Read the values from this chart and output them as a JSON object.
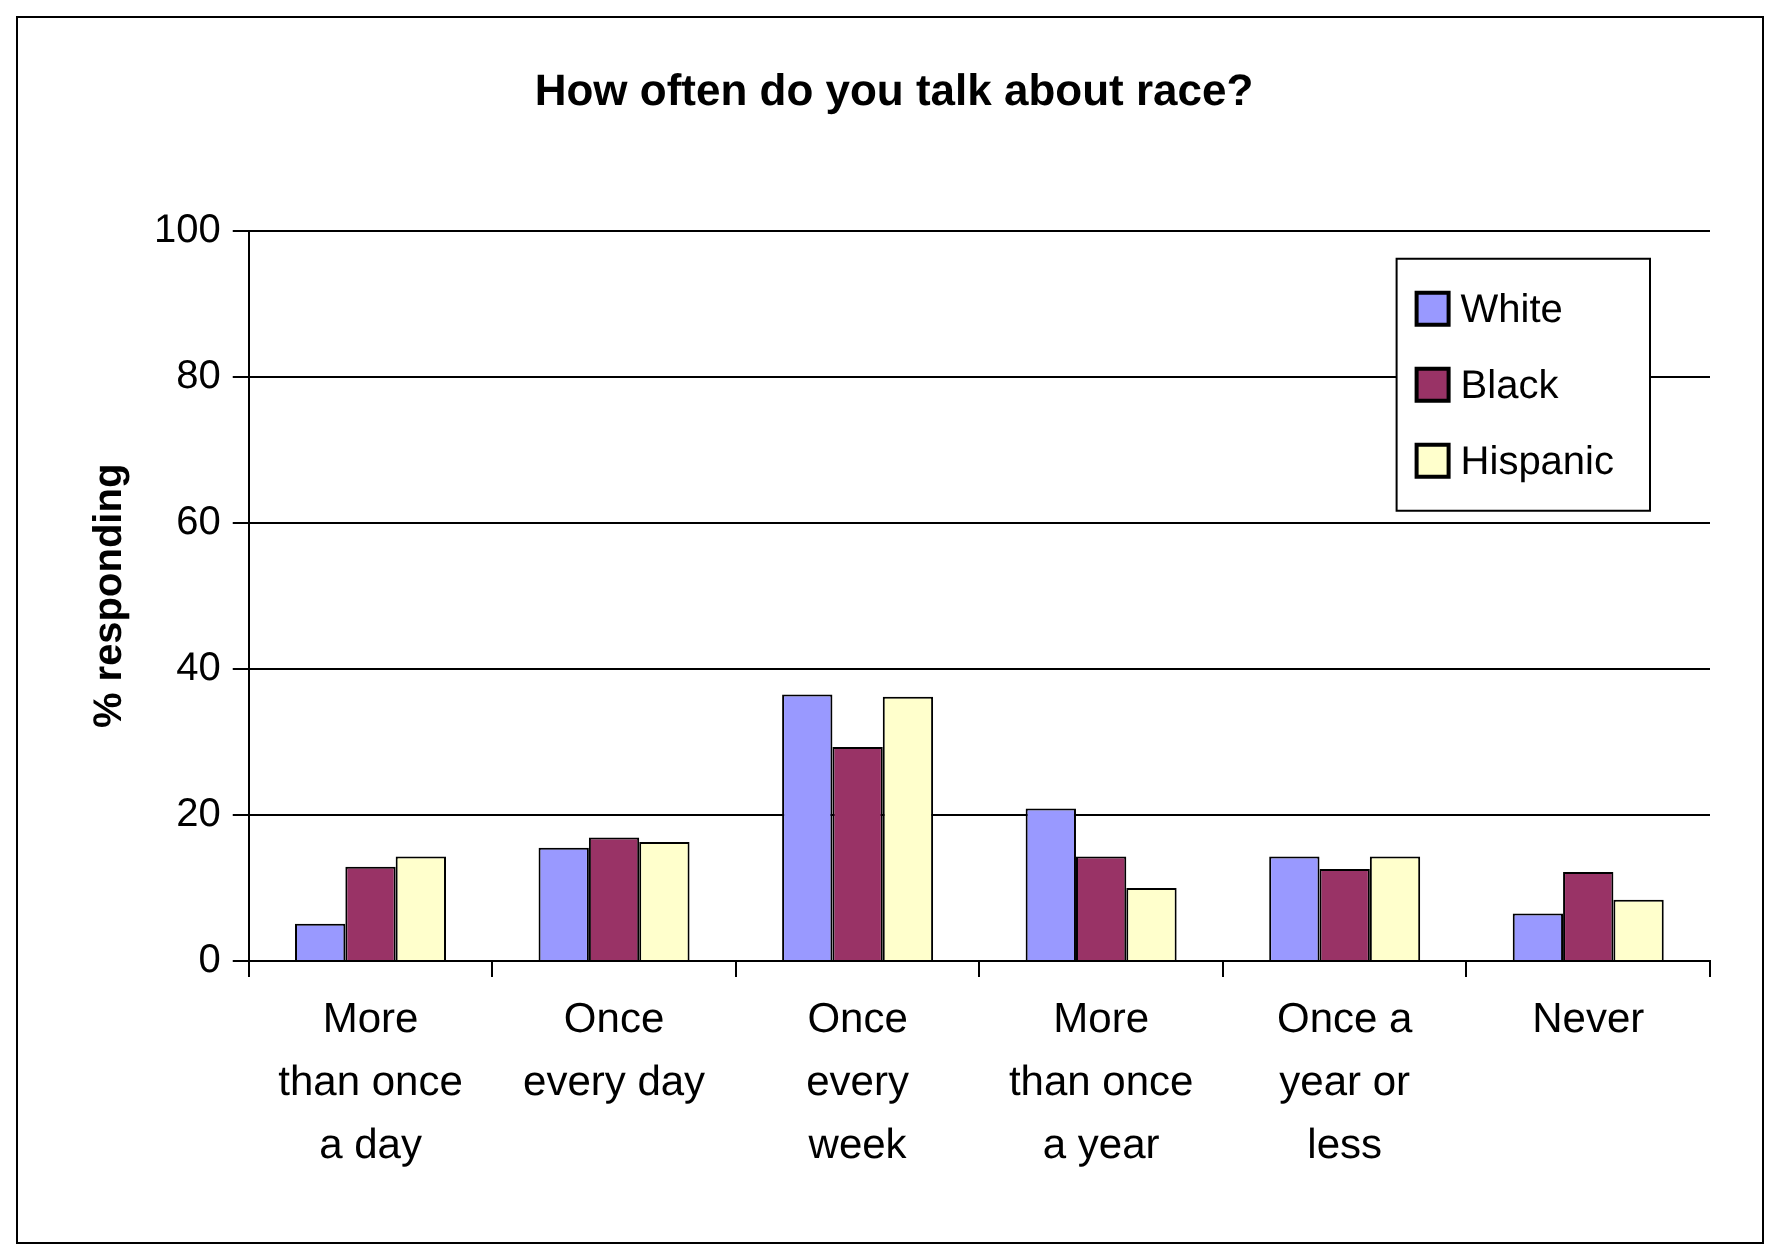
{
  "chart_data": {
    "type": "bar",
    "title": "How often do you talk about race?",
    "ylabel": "% responding",
    "categories": [
      "More\nthan once\na day",
      "Once\nevery day",
      "Once\nevery\nweek",
      "More\nthan once\na year",
      "Once a\nyear or\nless",
      "Never"
    ],
    "series": [
      {
        "name": "White",
        "color": "#9999ff",
        "values": [
          5.1,
          15.5,
          36.5,
          20.9,
          14.3,
          6.5
        ]
      },
      {
        "name": "Black",
        "color": "#993366",
        "values": [
          12.9,
          16.9,
          29.3,
          14.3,
          12.6,
          12.2
        ]
      },
      {
        "name": "Hispanic",
        "color": "#ffffcc",
        "values": [
          14.3,
          16.3,
          36.2,
          10.0,
          14.3,
          8.4
        ]
      }
    ],
    "ylim": [
      0,
      100
    ],
    "yticks": [
      0,
      20,
      40,
      60,
      80,
      100
    ],
    "grid": "y",
    "legend": "top right"
  }
}
